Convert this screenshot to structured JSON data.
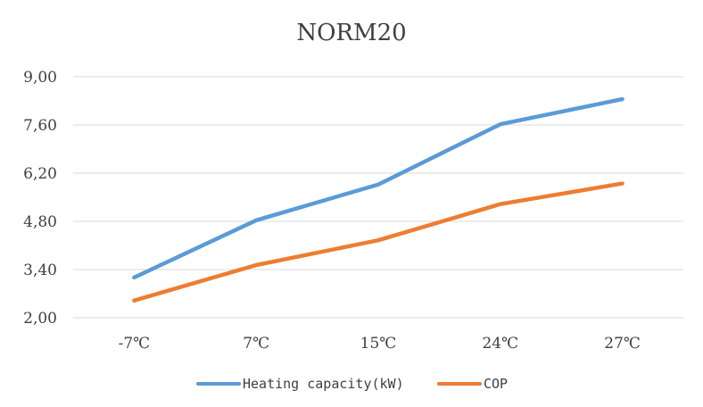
{
  "chart_data": {
    "type": "line",
    "title": "NORM20",
    "categories": [
      "-7℃",
      "7℃",
      "15℃",
      "24℃",
      "27℃"
    ],
    "series": [
      {
        "name": "Heating capacity(kW)",
        "color": "#5b9bd5",
        "values": [
          3.17,
          4.83,
          5.87,
          7.62,
          8.35
        ]
      },
      {
        "name": "COP",
        "color": "#ed7d31",
        "values": [
          2.5,
          3.53,
          4.25,
          5.3,
          5.9
        ]
      }
    ],
    "yticks": [
      "2,00",
      "3,40",
      "4,80",
      "6,20",
      "7,60",
      "9,00"
    ],
    "ylim": [
      2.0,
      9.0
    ],
    "grid": true,
    "legend_position": "bottom"
  }
}
